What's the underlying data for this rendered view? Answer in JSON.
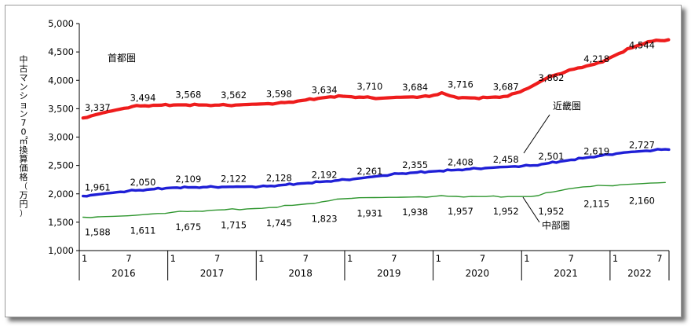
{
  "chart_data": {
    "type": "line",
    "ylabel": "中古マンション70㎡換算価格（万円）",
    "ylim": [
      1000,
      5000
    ],
    "ytick_step": 500,
    "grid": false,
    "x_period": {
      "start_year": 2016,
      "months": 80
    },
    "x_tick_labels": [
      "1",
      "7"
    ],
    "years": [
      "2016",
      "2017",
      "2018",
      "2019",
      "2020",
      "2021",
      "2022"
    ],
    "colors": {
      "首都圏": "#ee1c1c",
      "近畿圏": "#1f1fd6",
      "中部圏": "#2f962f"
    },
    "series": [
      {
        "name": "首都圏",
        "anchors": [
          [
            1,
            3337
          ],
          [
            6,
            3430
          ],
          [
            13,
            3540
          ],
          [
            18,
            3560
          ],
          [
            25,
            3568
          ],
          [
            37,
            3562
          ],
          [
            49,
            3598
          ],
          [
            53,
            3634
          ],
          [
            61,
            3710
          ],
          [
            64,
            3720
          ],
          [
            73,
            3684
          ],
          [
            77,
            3700
          ],
          [
            85,
            3716
          ],
          [
            88,
            3780
          ],
          [
            91,
            3700
          ],
          [
            97,
            3687
          ],
          [
            104,
            3720
          ],
          [
            109,
            3862
          ],
          [
            114,
            4060
          ],
          [
            121,
            4218
          ],
          [
            126,
            4300
          ],
          [
            133,
            4544
          ],
          [
            138,
            4680
          ],
          [
            143,
            4715
          ]
        ],
        "labels": [
          {
            "x": 1,
            "value": "3,337"
          },
          {
            "x": 7,
            "value": "3,494"
          },
          {
            "x": 13,
            "value": "3,568"
          },
          {
            "x": 19,
            "value": "3,562"
          },
          {
            "x": 25,
            "value": "3,598"
          },
          {
            "x": 31,
            "value": "3,634"
          },
          {
            "x": 37,
            "value": "3,710"
          },
          {
            "x": 43,
            "value": "3,684"
          },
          {
            "x": 49,
            "value": "3,716"
          },
          {
            "x": 55,
            "value": "3,687"
          },
          {
            "x": 61,
            "value": "3,862"
          },
          {
            "x": 67,
            "value": "4,218"
          },
          {
            "x": 73,
            "value": "4,544"
          }
        ]
      },
      {
        "name": "近畿圏",
        "anchors": [
          [
            1,
            1961
          ],
          [
            13,
            2050
          ],
          [
            25,
            2109
          ],
          [
            37,
            2122
          ],
          [
            49,
            2128
          ],
          [
            61,
            2192
          ],
          [
            73,
            2261
          ],
          [
            85,
            2355
          ],
          [
            97,
            2408
          ],
          [
            109,
            2458
          ],
          [
            121,
            2501
          ],
          [
            133,
            2619
          ],
          [
            145,
            2727
          ],
          [
            157,
            2790
          ]
        ],
        "labels": [
          {
            "x": 1,
            "value": "1,961"
          },
          {
            "x": 7,
            "value": "2,050"
          },
          {
            "x": 13,
            "value": "2,109"
          },
          {
            "x": 19,
            "value": "2,122"
          },
          {
            "x": 25,
            "value": "2,128"
          },
          {
            "x": 31,
            "value": "2,192"
          },
          {
            "x": 37,
            "value": "2,261"
          },
          {
            "x": 43,
            "value": "2,355"
          },
          {
            "x": 49,
            "value": "2,408"
          },
          {
            "x": 55,
            "value": "2,458"
          },
          {
            "x": 61,
            "value": "2,501"
          },
          {
            "x": 67,
            "value": "2,619"
          },
          {
            "x": 73,
            "value": "2,727"
          }
        ]
      },
      {
        "name": "中部圏",
        "anchors": [
          [
            1,
            1588
          ],
          [
            7,
            1611
          ],
          [
            13,
            1675
          ],
          [
            19,
            1715
          ],
          [
            25,
            1745
          ],
          [
            31,
            1823
          ],
          [
            37,
            1931
          ],
          [
            43,
            1938
          ],
          [
            49,
            1957
          ],
          [
            55,
            1952
          ],
          [
            61,
            1952
          ],
          [
            67,
            2115
          ],
          [
            73,
            2160
          ],
          [
            79,
            2200
          ]
        ],
        "labels": [
          {
            "x": 1,
            "value": "1,588"
          },
          {
            "x": 7,
            "value": "1,611"
          },
          {
            "x": 13,
            "value": "1,675"
          },
          {
            "x": 19,
            "value": "1,715"
          },
          {
            "x": 25,
            "value": "1,745"
          },
          {
            "x": 31,
            "value": "1,823"
          },
          {
            "x": 37,
            "value": "1,931"
          },
          {
            "x": 43,
            "value": "1,938"
          },
          {
            "x": 49,
            "value": "1,957"
          },
          {
            "x": 55,
            "value": "1,952"
          },
          {
            "x": 61,
            "value": "1,952"
          },
          {
            "x": 67,
            "value": "2,115"
          },
          {
            "x": 73,
            "value": "2,160"
          }
        ]
      }
    ]
  }
}
